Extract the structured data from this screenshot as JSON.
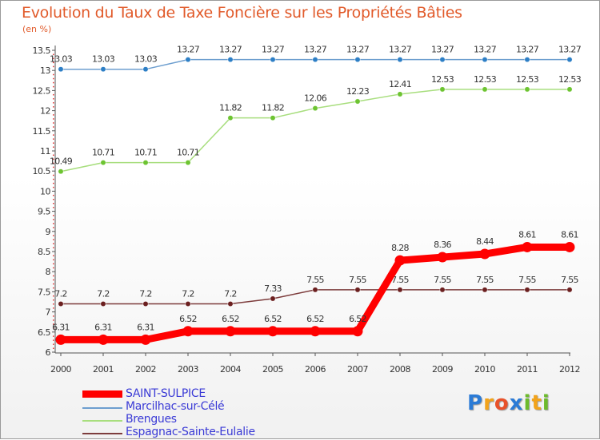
{
  "chart_data": {
    "type": "line",
    "title": "Evolution du Taux de Taxe Foncière sur les Propriétés Bâties",
    "ylabel": "(en %)",
    "xlabel": "",
    "categories": [
      "2000",
      "2001",
      "2002",
      "2003",
      "2004",
      "2005",
      "2006",
      "2007",
      "2008",
      "2009",
      "2010",
      "2011",
      "2012"
    ],
    "ylim": [
      6,
      13.5
    ],
    "yticks": [
      "6",
      "6.5",
      "7",
      "7.5",
      "8",
      "8.5",
      "9",
      "9.5",
      "10",
      "10.5",
      "11",
      "11.5",
      "12",
      "12.5",
      "13",
      "13.5"
    ],
    "series": [
      {
        "name": "Marcilhac-sur-Célé",
        "color": "#6d9ecf",
        "marker": "#2d7fc6",
        "values": [
          13.03,
          13.03,
          13.03,
          13.27,
          13.27,
          13.27,
          13.27,
          13.27,
          13.27,
          13.27,
          13.27,
          13.27,
          13.27
        ],
        "labels": [
          "13.03",
          "13.03",
          "13.03",
          "13.27",
          "13.27",
          "13.27",
          "13.27",
          "13.27",
          "13.27",
          "13.27",
          "13.27",
          "13.27",
          "13.27"
        ]
      },
      {
        "name": "Brengues",
        "color": "#a8de7e",
        "marker": "#6dc431",
        "values": [
          10.49,
          10.71,
          10.71,
          10.71,
          11.82,
          11.82,
          12.06,
          12.23,
          12.41,
          12.53,
          12.53,
          12.53,
          12.53
        ],
        "labels": [
          "10.49",
          "10.71",
          "10.71",
          "10.71",
          "11.82",
          "11.82",
          "12.06",
          "12.23",
          "12.41",
          "12.53",
          "12.53",
          "12.53",
          "12.53"
        ]
      },
      {
        "name": "Espagnac-Sainte-Eulalie",
        "color": "#7d3c3c",
        "marker": "#6b1f1f",
        "values": [
          7.2,
          7.2,
          7.2,
          7.2,
          7.2,
          7.33,
          7.55,
          7.55,
          7.55,
          7.55,
          7.55,
          7.55,
          7.55
        ],
        "labels": [
          "7.2",
          "7.2",
          "7.2",
          "7.2",
          "7.2",
          "7.33",
          "7.55",
          "7.55",
          "7.55",
          "7.55",
          "7.55",
          "7.55",
          "7.55"
        ]
      },
      {
        "name": "SAINT-SULPICE",
        "color": "#ff0000",
        "marker": "#ff0000",
        "values": [
          6.31,
          6.31,
          6.31,
          6.52,
          6.52,
          6.52,
          6.52,
          6.52,
          8.28,
          8.36,
          8.44,
          8.61,
          8.61
        ],
        "labels": [
          "6.31",
          "6.31",
          "6.31",
          "6.52",
          "6.52",
          "6.52",
          "6.52",
          "6.52",
          "8.28",
          "8.36",
          "8.44",
          "8.61",
          "8.61"
        ]
      }
    ],
    "legend": [
      "SAINT-SULPICE",
      "Marcilhac-sur-Célé",
      "Brengues",
      "Espagnac-Sainte-Eulalie"
    ],
    "legend_position": "bottom-left",
    "grid": false
  },
  "logo": {
    "letters": [
      "P",
      "r",
      "o",
      "x",
      "i",
      "t",
      "i"
    ],
    "colors": [
      "#2b7bd6",
      "#f2a31b",
      "#e8522a",
      "#2b7bd6",
      "#6dbb2b",
      "#f2a31b",
      "#6dbb2b"
    ]
  }
}
